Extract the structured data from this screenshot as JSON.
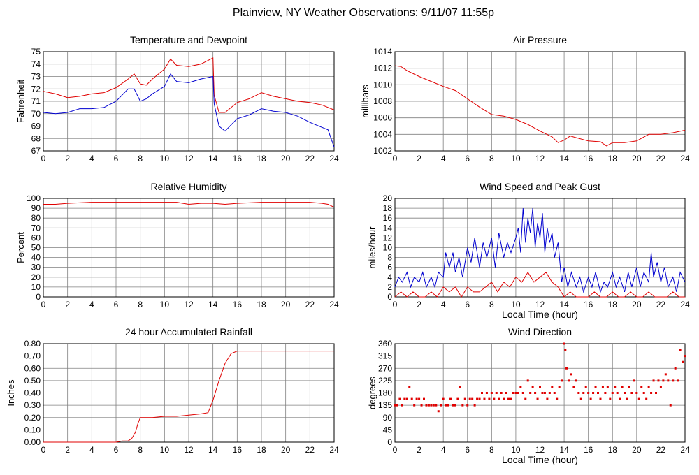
{
  "page_title": "Plainview, NY Weather Observations: 9/11/07 11:55p",
  "colors": {
    "red": "#e00000",
    "blue": "#0000d0",
    "grid": "#808080"
  },
  "chart_data": [
    {
      "id": "temp",
      "type": "line",
      "title": "Temperature and Dewpoint",
      "xlabel": "",
      "ylabel": "Fahrenheit",
      "xlim": [
        0,
        24
      ],
      "ylim": [
        67,
        75
      ],
      "xticks": [
        0,
        2,
        4,
        6,
        8,
        10,
        12,
        14,
        16,
        18,
        20,
        22,
        24
      ],
      "yticks": [
        67,
        68,
        69,
        70,
        71,
        72,
        73,
        74,
        75
      ],
      "series": [
        {
          "color": "red",
          "x": [
            0,
            1,
            2,
            3,
            4,
            5,
            6,
            7,
            7.5,
            8,
            8.5,
            9,
            10,
            10.5,
            11,
            12,
            13,
            14,
            14.1,
            14.5,
            15,
            16,
            17,
            18,
            19,
            20,
            21,
            22,
            23,
            24
          ],
          "y": [
            71.8,
            71.6,
            71.3,
            71.4,
            71.6,
            71.7,
            72.1,
            72.8,
            73.2,
            72.4,
            72.3,
            72.8,
            73.6,
            74.4,
            73.9,
            73.8,
            74,
            74.5,
            71.5,
            70.1,
            70.1,
            70.9,
            71.2,
            71.7,
            71.4,
            71.2,
            71,
            70.9,
            70.7,
            70.3
          ]
        },
        {
          "color": "blue",
          "x": [
            0,
            1,
            2,
            3,
            4,
            5,
            6,
            7,
            7.5,
            8,
            8.5,
            9,
            10,
            10.5,
            11,
            12,
            13,
            14,
            14.1,
            14.5,
            15,
            16,
            17,
            18,
            19,
            20,
            21,
            22,
            23,
            23.5,
            24
          ],
          "y": [
            70.1,
            70,
            70.1,
            70.4,
            70.4,
            70.5,
            71,
            72,
            72,
            71,
            71.2,
            71.6,
            72.2,
            73.2,
            72.6,
            72.5,
            72.8,
            73,
            70.8,
            69,
            68.6,
            69.6,
            69.9,
            70.4,
            70.2,
            70.1,
            69.8,
            69.3,
            68.9,
            68.7,
            67.3
          ]
        }
      ]
    },
    {
      "id": "pressure",
      "type": "line",
      "title": "Air Pressure",
      "xlabel": "",
      "ylabel": "millibars",
      "xlim": [
        0,
        24
      ],
      "ylim": [
        1002,
        1014
      ],
      "xticks": [
        0,
        2,
        4,
        6,
        8,
        10,
        12,
        14,
        16,
        18,
        20,
        22,
        24
      ],
      "yticks": [
        1002,
        1004,
        1006,
        1008,
        1010,
        1012,
        1014
      ],
      "series": [
        {
          "color": "red",
          "x": [
            0,
            0.5,
            1,
            2,
            3,
            4,
            5,
            6,
            7,
            8,
            9,
            10,
            11,
            12,
            13,
            13.5,
            14,
            14.5,
            15,
            16,
            17,
            17.5,
            18,
            19,
            20,
            21,
            22,
            23,
            24
          ],
          "y": [
            1012.3,
            1012.2,
            1011.7,
            1011,
            1010.4,
            1009.8,
            1009.3,
            1008.3,
            1007.3,
            1006.4,
            1006.2,
            1005.8,
            1005.2,
            1004.4,
            1003.7,
            1003,
            1003.3,
            1003.8,
            1003.6,
            1003.2,
            1003.1,
            1002.6,
            1003,
            1003,
            1003.2,
            1004,
            1004,
            1004.2,
            1004.5
          ]
        }
      ]
    },
    {
      "id": "humidity",
      "type": "line",
      "title": "Relative Humidity",
      "xlabel": "",
      "ylabel": "Percent",
      "xlim": [
        0,
        24
      ],
      "ylim": [
        0,
        100
      ],
      "xticks": [
        0,
        2,
        4,
        6,
        8,
        10,
        12,
        14,
        16,
        18,
        20,
        22,
        24
      ],
      "yticks": [
        0,
        10,
        20,
        30,
        40,
        50,
        60,
        70,
        80,
        90,
        100
      ],
      "series": [
        {
          "color": "red",
          "x": [
            0,
            1,
            2,
            4,
            6,
            8,
            10,
            11,
            12,
            13,
            14,
            15,
            16,
            18,
            20,
            22,
            23,
            23.5,
            24
          ],
          "y": [
            94,
            94,
            95,
            96,
            96,
            96,
            96,
            96,
            94,
            95,
            95,
            94,
            95,
            96,
            96,
            96,
            95,
            94,
            91
          ]
        }
      ]
    },
    {
      "id": "wind",
      "type": "line",
      "title": "Wind Speed and Peak Gust",
      "xlabel": "Local Time (hour)",
      "ylabel": "miles/hour",
      "xlim": [
        0,
        24
      ],
      "ylim": [
        0,
        20
      ],
      "xticks": [
        0,
        2,
        4,
        6,
        8,
        10,
        12,
        14,
        16,
        18,
        20,
        22,
        24
      ],
      "yticks": [
        0,
        2,
        4,
        6,
        8,
        10,
        12,
        14,
        16,
        18,
        20
      ],
      "series": [
        {
          "color": "blue",
          "x": [
            0,
            0.3,
            0.6,
            1,
            1.3,
            1.6,
            2,
            2.3,
            2.6,
            3,
            3.3,
            3.6,
            4,
            4.2,
            4.5,
            4.8,
            5,
            5.3,
            5.6,
            6,
            6.3,
            6.6,
            7,
            7.3,
            7.6,
            8,
            8.3,
            8.6,
            9,
            9.3,
            9.6,
            10,
            10.2,
            10.4,
            10.6,
            10.8,
            11,
            11.2,
            11.4,
            11.6,
            11.8,
            12,
            12.2,
            12.4,
            12.6,
            12.8,
            13,
            13.2,
            13.5,
            13.8,
            14,
            14.3,
            14.6,
            15,
            15.3,
            15.6,
            16,
            16.3,
            16.6,
            17,
            17.3,
            17.6,
            18,
            18.3,
            18.6,
            19,
            19.3,
            19.6,
            20,
            20.3,
            20.6,
            21,
            21.2,
            21.4,
            21.7,
            22,
            22.3,
            22.6,
            23,
            23.3,
            23.6,
            24
          ],
          "y": [
            2,
            4,
            3,
            5,
            2,
            4,
            3,
            5,
            2,
            4,
            2,
            5,
            4,
            9,
            6,
            9,
            5,
            8,
            4,
            10,
            7,
            12,
            6,
            11,
            8,
            12,
            6,
            13,
            8,
            11,
            9,
            12,
            14,
            9,
            18,
            11,
            16,
            13,
            18,
            10,
            15,
            12,
            17,
            9,
            14,
            11,
            13,
            8,
            11,
            3,
            6,
            2,
            5,
            2,
            4,
            1,
            4,
            2,
            5,
            1,
            3,
            2,
            5,
            2,
            4,
            1,
            5,
            2,
            6,
            2,
            5,
            3,
            9,
            4,
            7,
            3,
            6,
            2,
            4,
            1,
            5,
            3
          ]
        },
        {
          "color": "red",
          "x": [
            0,
            0.5,
            1,
            1.5,
            2,
            2.5,
            3,
            3.5,
            4,
            4.5,
            5,
            5.5,
            6,
            6.5,
            7,
            7.5,
            8,
            8.5,
            9,
            9.5,
            10,
            10.5,
            11,
            11.5,
            12,
            12.5,
            13,
            13.5,
            14,
            14.5,
            15,
            15.5,
            16,
            16.5,
            17,
            17.5,
            18,
            18.5,
            19,
            19.5,
            20,
            20.5,
            21,
            21.5,
            22,
            22.5,
            23,
            23.5,
            24
          ],
          "y": [
            0,
            1,
            0,
            1,
            0,
            0,
            1,
            0,
            2,
            1,
            2,
            0,
            2,
            1,
            1,
            2,
            3,
            1,
            3,
            2,
            4,
            3,
            5,
            3,
            4,
            5,
            3,
            2,
            0,
            1,
            0,
            0,
            0,
            1,
            0,
            0,
            1,
            0,
            0,
            1,
            0,
            0,
            1,
            0,
            0,
            0,
            1,
            0,
            0
          ]
        }
      ]
    },
    {
      "id": "rain",
      "type": "line",
      "title": "24 hour Accumulated Rainfall",
      "xlabel": "",
      "ylabel": "Inches",
      "xlim": [
        0,
        24
      ],
      "ylim": [
        0,
        0.8
      ],
      "xticks": [
        0,
        2,
        4,
        6,
        8,
        10,
        12,
        14,
        16,
        18,
        20,
        22,
        24
      ],
      "yticks": [
        "0.00",
        "0.10",
        "0.20",
        "0.30",
        "0.40",
        "0.50",
        "0.60",
        "0.70",
        "0.80"
      ],
      "series": [
        {
          "color": "red",
          "x": [
            0,
            5,
            6,
            6.5,
            7,
            7.3,
            7.6,
            7.8,
            8,
            9,
            10,
            11,
            12,
            13,
            13.6,
            14,
            14.5,
            15,
            15.5,
            16,
            18,
            20,
            22,
            24
          ],
          "y": [
            0,
            0,
            0,
            0.01,
            0.01,
            0.03,
            0.08,
            0.15,
            0.2,
            0.2,
            0.21,
            0.21,
            0.22,
            0.23,
            0.24,
            0.34,
            0.5,
            0.64,
            0.72,
            0.74,
            0.74,
            0.74,
            0.74,
            0.74
          ]
        }
      ]
    },
    {
      "id": "direction",
      "type": "scatter",
      "title": "Wind Direction",
      "xlabel": "Local Time (hour)",
      "ylabel": "degrees",
      "xlim": [
        0,
        24
      ],
      "ylim": [
        0,
        360
      ],
      "xticks": [
        0,
        2,
        4,
        6,
        8,
        10,
        12,
        14,
        16,
        18,
        20,
        22,
        24
      ],
      "yticks": [
        0,
        45,
        90,
        135,
        180,
        225,
        270,
        315,
        360
      ],
      "series": [
        {
          "color": "red",
          "x": [
            0,
            0.2,
            0.4,
            0.6,
            0.8,
            1,
            1.2,
            1.4,
            1.6,
            1.8,
            2,
            2.2,
            2.4,
            2.6,
            2.8,
            3,
            3.2,
            3.4,
            3.6,
            3.8,
            4,
            4.2,
            4.4,
            4.6,
            4.8,
            5,
            5.2,
            5.4,
            5.6,
            5.8,
            6,
            6.2,
            6.4,
            6.6,
            6.8,
            7,
            7.2,
            7.4,
            7.6,
            7.8,
            8,
            8.2,
            8.4,
            8.6,
            8.8,
            9,
            9.2,
            9.4,
            9.6,
            9.8,
            10,
            10.2,
            10.4,
            10.6,
            10.8,
            11,
            11.2,
            11.4,
            11.6,
            11.8,
            12,
            12.2,
            12.4,
            12.6,
            12.8,
            13,
            13.2,
            13.4,
            13.6,
            13.8,
            14,
            14.1,
            14.2,
            14.4,
            14.6,
            14.8,
            15,
            15.2,
            15.4,
            15.6,
            15.8,
            16,
            16.2,
            16.4,
            16.6,
            16.8,
            17,
            17.2,
            17.4,
            17.6,
            17.8,
            18,
            18.2,
            18.4,
            18.6,
            18.8,
            19,
            19.2,
            19.4,
            19.6,
            19.8,
            20,
            20.2,
            20.4,
            20.6,
            20.8,
            21,
            21.2,
            21.4,
            21.6,
            21.8,
            22,
            22.2,
            22.4,
            22.6,
            22.8,
            23,
            23.2,
            23.4,
            23.6,
            23.8,
            24
          ],
          "y": [
            135,
            135,
            158,
            135,
            158,
            158,
            203,
            158,
            135,
            158,
            158,
            135,
            158,
            135,
            135,
            135,
            135,
            135,
            113,
            135,
            158,
            135,
            135,
            158,
            135,
            135,
            158,
            203,
            135,
            158,
            135,
            158,
            158,
            135,
            158,
            158,
            180,
            158,
            180,
            158,
            180,
            158,
            180,
            158,
            180,
            158,
            180,
            158,
            158,
            180,
            180,
            180,
            203,
            180,
            158,
            225,
            180,
            203,
            180,
            158,
            203,
            180,
            180,
            158,
            180,
            203,
            180,
            158,
            203,
            225,
            360,
            338,
            270,
            225,
            248,
            203,
            225,
            180,
            158,
            180,
            203,
            180,
            158,
            180,
            203,
            180,
            158,
            203,
            180,
            203,
            158,
            180,
            203,
            180,
            158,
            203,
            180,
            158,
            203,
            180,
            225,
            180,
            158,
            203,
            180,
            158,
            203,
            180,
            225,
            180,
            225,
            203,
            225,
            248,
            225,
            135,
            225,
            270,
            225,
            338,
            293,
            315
          ]
        }
      ]
    }
  ]
}
